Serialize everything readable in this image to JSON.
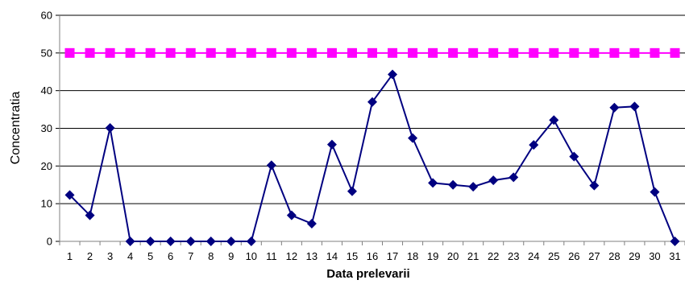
{
  "chart_data": {
    "type": "line",
    "xlabel": "Data prelevarii",
    "ylabel": "Concentratia",
    "ylim": [
      0,
      60
    ],
    "yticks": [
      0,
      10,
      20,
      30,
      40,
      50,
      60
    ],
    "grid": true,
    "legend": "none",
    "categories": [
      "1",
      "2",
      "3",
      "4",
      "5",
      "6",
      "7",
      "8",
      "9",
      "10",
      "11",
      "12",
      "13",
      "14",
      "15",
      "16",
      "17",
      "18",
      "19",
      "20",
      "21",
      "22",
      "23",
      "24",
      "25",
      "26",
      "27",
      "28",
      "29",
      "30",
      "31"
    ],
    "series": [
      {
        "color": "#000080",
        "marker": "diamond",
        "values": [
          12.3,
          6.9,
          30.1,
          0,
          0,
          0,
          0,
          0,
          0,
          0,
          20.2,
          6.9,
          4.7,
          25.7,
          13.3,
          37.0,
          44.3,
          27.4,
          15.5,
          15.0,
          14.5,
          16.2,
          17.0,
          25.6,
          32.2,
          22.5,
          14.8,
          35.5,
          35.8,
          13.1,
          0
        ]
      },
      {
        "color": "#ff00ff",
        "marker": "square",
        "values": [
          50,
          50,
          50,
          50,
          50,
          50,
          50,
          50,
          50,
          50,
          50,
          50,
          50,
          50,
          50,
          50,
          50,
          50,
          50,
          50,
          50,
          50,
          50,
          50,
          50,
          50,
          50,
          50,
          50,
          50,
          50
        ]
      }
    ]
  }
}
